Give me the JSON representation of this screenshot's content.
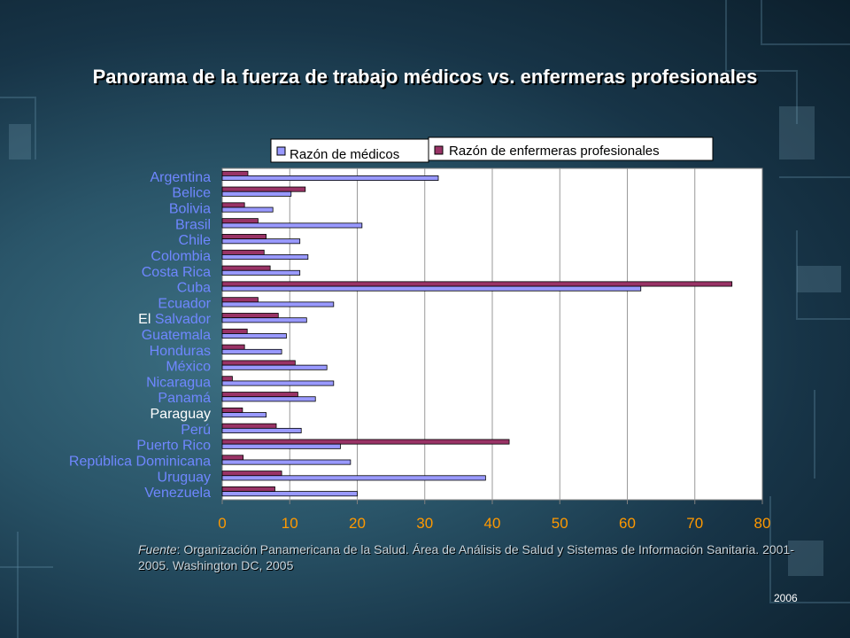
{
  "slide": {
    "title": "Panorama de la fuerza de trabajo médicos vs. enfermeras profesionales",
    "source_label": "Fuente",
    "source_text": ": Organización Panamericana de la Salud. Área de Análisis de Salud y Sistemas de Información Sanitaria. 2001-2005. Washington DC, 2005",
    "year": "2006"
  },
  "colors": {
    "medicos": "#9999ff",
    "enfermeras": "#993366",
    "label_blue": "#6f87ff",
    "label_white": "#ffffff",
    "axis_tick": "#ff9900"
  },
  "chart_data": {
    "type": "bar",
    "orientation": "horizontal",
    "categories": [
      "Argentina",
      "Belice",
      "Bolivia",
      "Brasil",
      "Chile",
      "Colombia",
      "Costa Rica",
      "Cuba",
      "Ecuador",
      "El Salvador",
      "Guatemala",
      "Honduras",
      "México",
      "Nicaragua",
      "Panamá",
      "Paraguay",
      "Perú",
      "Puerto Rico",
      "República Dominicana",
      "Uruguay",
      "Venezuela"
    ],
    "series": [
      {
        "name": "Razón de médicos",
        "values": [
          32,
          10.2,
          7.5,
          20.7,
          11.5,
          12.7,
          11.5,
          62,
          16.5,
          12.5,
          9.5,
          8.8,
          15.5,
          16.5,
          13.8,
          6.5,
          11.7,
          17.5,
          19,
          39,
          20
        ]
      },
      {
        "name": "Razón de enfermeras profesionales",
        "values": [
          3.8,
          12.3,
          3.3,
          5.3,
          6.5,
          6.2,
          7.1,
          75.5,
          5.3,
          8.3,
          3.7,
          3.3,
          10.8,
          1.5,
          11.2,
          3,
          8,
          42.5,
          3.1,
          8.8,
          7.8
        ]
      }
    ],
    "xlim": [
      0,
      80
    ],
    "xticks": [
      "0",
      "10",
      "20",
      "30",
      "40",
      "50",
      "60",
      "70",
      "80"
    ],
    "legend_position": "top-right",
    "grid": true
  }
}
